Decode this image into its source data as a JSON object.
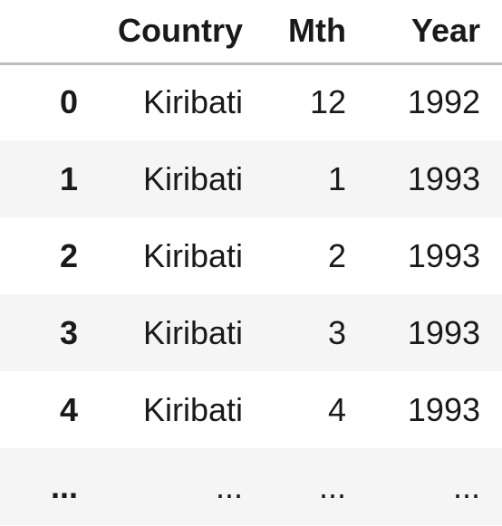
{
  "table": {
    "columns": [
      "",
      "Country",
      "Mth",
      "Year"
    ],
    "rows": [
      {
        "index": "0",
        "country": "Kiribati",
        "mth": "12",
        "year": "1992"
      },
      {
        "index": "1",
        "country": "Kiribati",
        "mth": "1",
        "year": "1993"
      },
      {
        "index": "2",
        "country": "Kiribati",
        "mth": "2",
        "year": "1993"
      },
      {
        "index": "3",
        "country": "Kiribati",
        "mth": "3",
        "year": "1993"
      },
      {
        "index": "4",
        "country": "Kiribati",
        "mth": "4",
        "year": "1993"
      }
    ],
    "ellipsis": {
      "index": "...",
      "country": "...",
      "mth": "...",
      "year": "..."
    }
  },
  "colors": {
    "stripe": "#f5f5f5",
    "header_rule": "#bdbdbd",
    "text": "#1a1a1a"
  }
}
